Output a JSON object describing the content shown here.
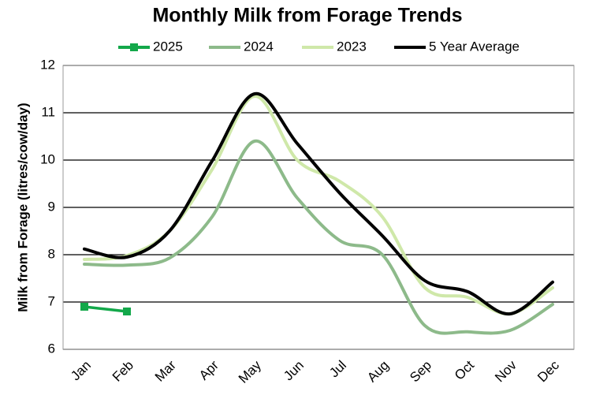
{
  "chart_data": {
    "type": "line",
    "title": "Monthly Milk from Forage Trends",
    "y_label": "Milk from Forage (litres/cow/day)",
    "categories": [
      "Jan",
      "Feb",
      "Mar",
      "Apr",
      "May",
      "Jun",
      "Jul",
      "Aug",
      "Sep",
      "Oct",
      "Nov",
      "Dec"
    ],
    "series": [
      {
        "name": "2025",
        "color": "#13a84a",
        "marker": "square",
        "values": [
          6.9,
          6.8,
          null,
          null,
          null,
          null,
          null,
          null,
          null,
          null,
          null,
          null
        ]
      },
      {
        "name": "2024",
        "color": "#8dba8a",
        "values": [
          7.8,
          7.78,
          7.93,
          8.8,
          10.4,
          9.2,
          8.3,
          8.0,
          6.5,
          6.37,
          6.4,
          6.95
        ]
      },
      {
        "name": "2023",
        "color": "#cfe8a9",
        "values": [
          7.9,
          7.98,
          8.5,
          9.8,
          11.35,
          10.0,
          9.55,
          8.8,
          7.3,
          7.1,
          6.75,
          7.3
        ]
      },
      {
        "name": "5 Year Average",
        "color": "#000000",
        "values": [
          8.12,
          7.95,
          8.5,
          9.98,
          11.4,
          10.35,
          9.3,
          8.4,
          7.45,
          7.22,
          6.75,
          7.42
        ]
      }
    ],
    "ylim": [
      6,
      12
    ],
    "yticks": [
      6,
      7,
      8,
      9,
      10,
      11,
      12
    ],
    "grid": true,
    "legend": "top"
  }
}
